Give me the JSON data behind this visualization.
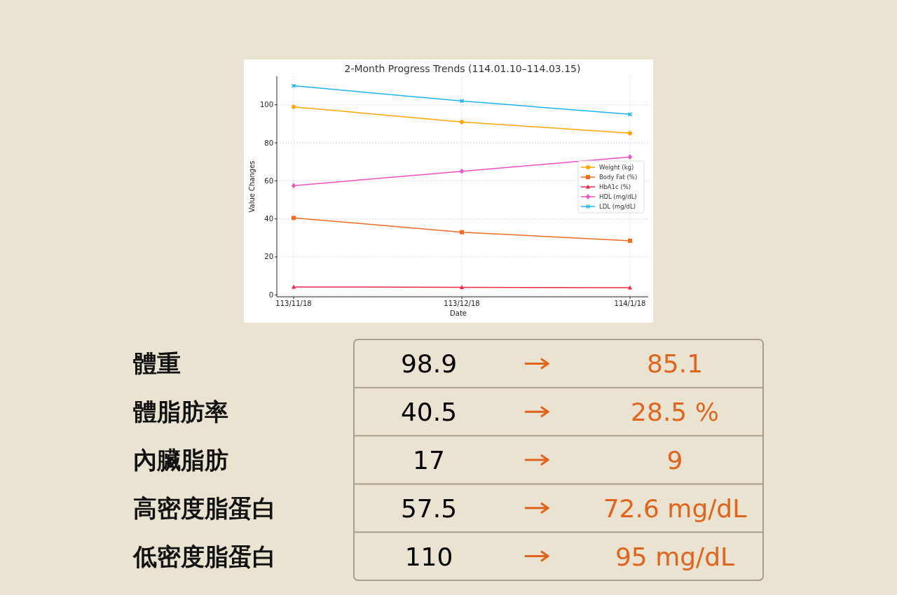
{
  "chart_data": [
    {
      "type": "line",
      "title": "2-Month Progress Trends (114.01.10–114.03.15)",
      "xlabel": "Date",
      "ylabel": "Value Changes",
      "categories": [
        "113/11/18",
        "113/12/18",
        "114/1/18"
      ],
      "ylim": [
        -1,
        115
      ],
      "yticks": [
        0,
        20,
        40,
        60,
        80,
        100
      ],
      "grid": true,
      "legend": "right",
      "series": [
        {
          "name": "Weight (kg)",
          "color": "#ffa500",
          "marker": "circle",
          "values": [
            98.9,
            91,
            85.1
          ]
        },
        {
          "name": "Body Fat (%)",
          "color": "#f26b22",
          "marker": "square",
          "values": [
            40.5,
            33,
            28.5
          ]
        },
        {
          "name": "HbA1c (%)",
          "color": "#f0284a",
          "marker": "triangle",
          "values": [
            4.2,
            4,
            3.8
          ]
        },
        {
          "name": "HDL (mg/dL)",
          "color": "#f550c0",
          "marker": "diamond",
          "values": [
            57.5,
            65,
            72.6
          ]
        },
        {
          "name": "LDL (mg/dL)",
          "color": "#1eb4f5",
          "marker": "cross",
          "values": [
            110,
            102,
            95
          ]
        }
      ]
    },
    {
      "type": "other",
      "categories": [
        "體重",
        "體脂肪率",
        "內臟脂肪",
        "高密度脂蛋白",
        "低密度脂蛋白"
      ],
      "series": [
        {
          "color": "#000000",
          "values": [
            98.9,
            40.5,
            17,
            57.5,
            110
          ],
          "value_labels": [
            "98.9",
            "40.5",
            "17",
            "57.5",
            "110"
          ]
        },
        {
          "color": "#e0641c",
          "values": [
            85.1,
            28.5,
            9,
            72.6,
            95
          ],
          "value_labels": [
            "85.1",
            "28.5 %",
            "9",
            "72.6 mg/dL",
            "95 mg/dL"
          ]
        }
      ]
    }
  ]
}
